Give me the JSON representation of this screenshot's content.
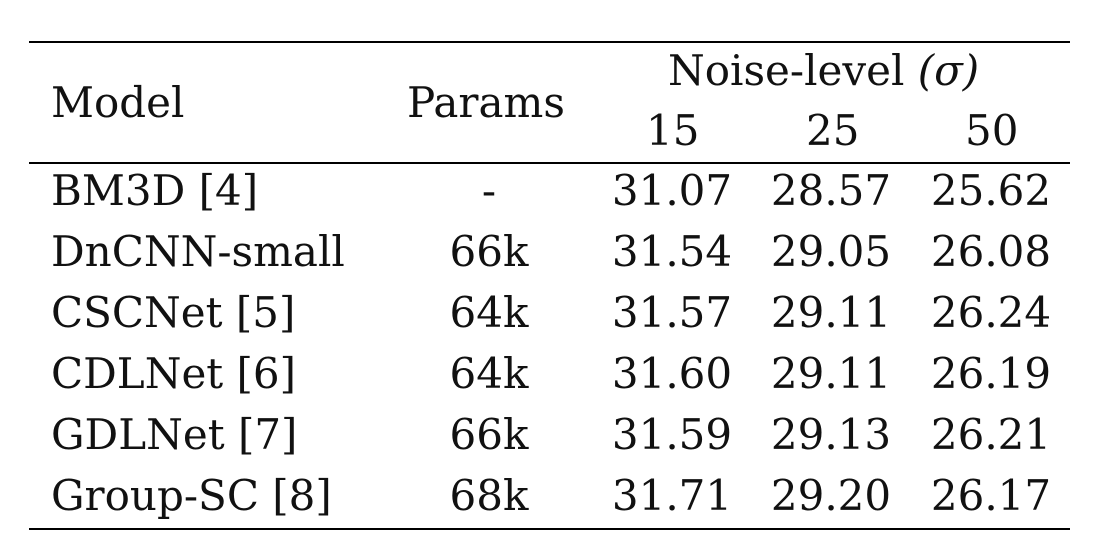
{
  "table": {
    "headers": {
      "model": "Model",
      "params": "Params",
      "noise_level": "Noise-level",
      "noise_symbol": "(σ)",
      "sigmas": [
        "15",
        "25",
        "50"
      ]
    },
    "rows": [
      {
        "model": "BM3D [4]",
        "params": "-",
        "v15": "31.07",
        "v25": "28.57",
        "v50": "25.62"
      },
      {
        "model": "DnCNN-small",
        "params": "66k",
        "v15": "31.54",
        "v25": "29.05",
        "v50": "26.08"
      },
      {
        "model": "CSCNet [5]",
        "params": "64k",
        "v15": "31.57",
        "v25": "29.11",
        "v50": "26.24"
      },
      {
        "model": "CDLNet [6]",
        "params": "64k",
        "v15": "31.60",
        "v25": "29.11",
        "v50": "26.19"
      },
      {
        "model": "GDLNet [7]",
        "params": "66k",
        "v15": "31.59",
        "v25": "29.13",
        "v50": "26.21"
      },
      {
        "model": "Group-SC [8]",
        "params": "68k",
        "v15": "31.71",
        "v25": "29.20",
        "v50": "26.17"
      }
    ]
  }
}
